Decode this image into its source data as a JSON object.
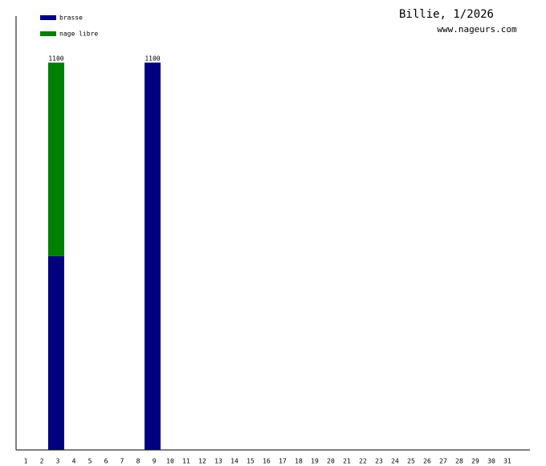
{
  "chart_data": {
    "type": "stacked-bar",
    "title": "Billie, 1/2026",
    "subtitle": "www.nageurs.com",
    "categories": [
      "1",
      "2",
      "3",
      "4",
      "5",
      "6",
      "7",
      "8",
      "9",
      "10",
      "11",
      "12",
      "13",
      "14",
      "15",
      "16",
      "17",
      "18",
      "19",
      "20",
      "21",
      "22",
      "23",
      "24",
      "25",
      "26",
      "27",
      "28",
      "29",
      "30",
      "31"
    ],
    "series": [
      {
        "name": "brasse",
        "color": "#000080",
        "values": [
          0,
          0,
          550,
          0,
          0,
          0,
          0,
          0,
          1100,
          0,
          0,
          0,
          0,
          0,
          0,
          0,
          0,
          0,
          0,
          0,
          0,
          0,
          0,
          0,
          0,
          0,
          0,
          0,
          0,
          0,
          0
        ]
      },
      {
        "name": "nage libre",
        "color": "#008000",
        "values": [
          0,
          0,
          550,
          0,
          0,
          0,
          0,
          0,
          0,
          0,
          0,
          0,
          0,
          0,
          0,
          0,
          0,
          0,
          0,
          0,
          0,
          0,
          0,
          0,
          0,
          0,
          0,
          0,
          0,
          0,
          0
        ]
      }
    ],
    "total_labels": [
      null,
      null,
      "1100",
      null,
      null,
      null,
      null,
      null,
      "1100",
      null,
      null,
      null,
      null,
      null,
      null,
      null,
      null,
      null,
      null,
      null,
      null,
      null,
      null,
      null,
      null,
      null,
      null,
      null,
      null,
      null,
      null
    ],
    "ylim": [
      0,
      1232
    ],
    "legend": "top-left"
  }
}
